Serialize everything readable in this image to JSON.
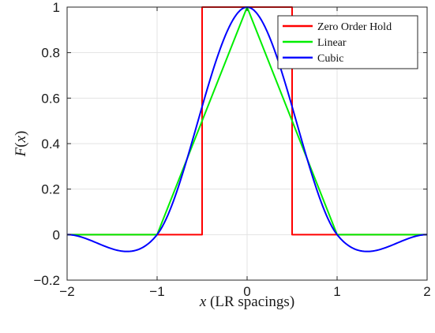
{
  "chart_data": {
    "type": "line",
    "title": "",
    "xlabel": "x (LR spacings)",
    "xlabel_parts": {
      "var": "x",
      "rest": " (LR spacings)"
    },
    "ylabel": "F(x)",
    "ylabel_parts": {
      "func": "F",
      "open": "(",
      "var": "x",
      "close": ")"
    },
    "xlim": [
      -2,
      2
    ],
    "ylim": [
      -0.2,
      1
    ],
    "xticks": [
      -2,
      -1,
      0,
      1,
      2
    ],
    "xtick_labels": [
      "−2",
      "−1",
      "0",
      "1",
      "2"
    ],
    "yticks": [
      -0.2,
      0,
      0.2,
      0.4,
      0.6,
      0.8,
      1
    ],
    "ytick_labels": [
      "−0.2",
      "0",
      "0.2",
      "0.4",
      "0.6",
      "0.8",
      "1"
    ],
    "grid": true,
    "legend_position": "top-right",
    "series": [
      {
        "name": "Zero Order Hold",
        "color": "#ff0000",
        "kind": "zero_order_hold",
        "x": [
          -2,
          -0.5,
          -0.5,
          0.5,
          0.5,
          2
        ],
        "y": [
          0,
          0,
          1,
          1,
          0,
          0
        ]
      },
      {
        "name": "Linear",
        "color": "#00ee00",
        "kind": "linear",
        "x": [
          -2,
          -1,
          0,
          1,
          2
        ],
        "y": [
          0,
          0,
          1,
          0,
          0
        ]
      },
      {
        "name": "Cubic",
        "color": "#0000ff",
        "kind": "cubic",
        "a": -0.5,
        "sample_step": 0.02
      }
    ]
  }
}
